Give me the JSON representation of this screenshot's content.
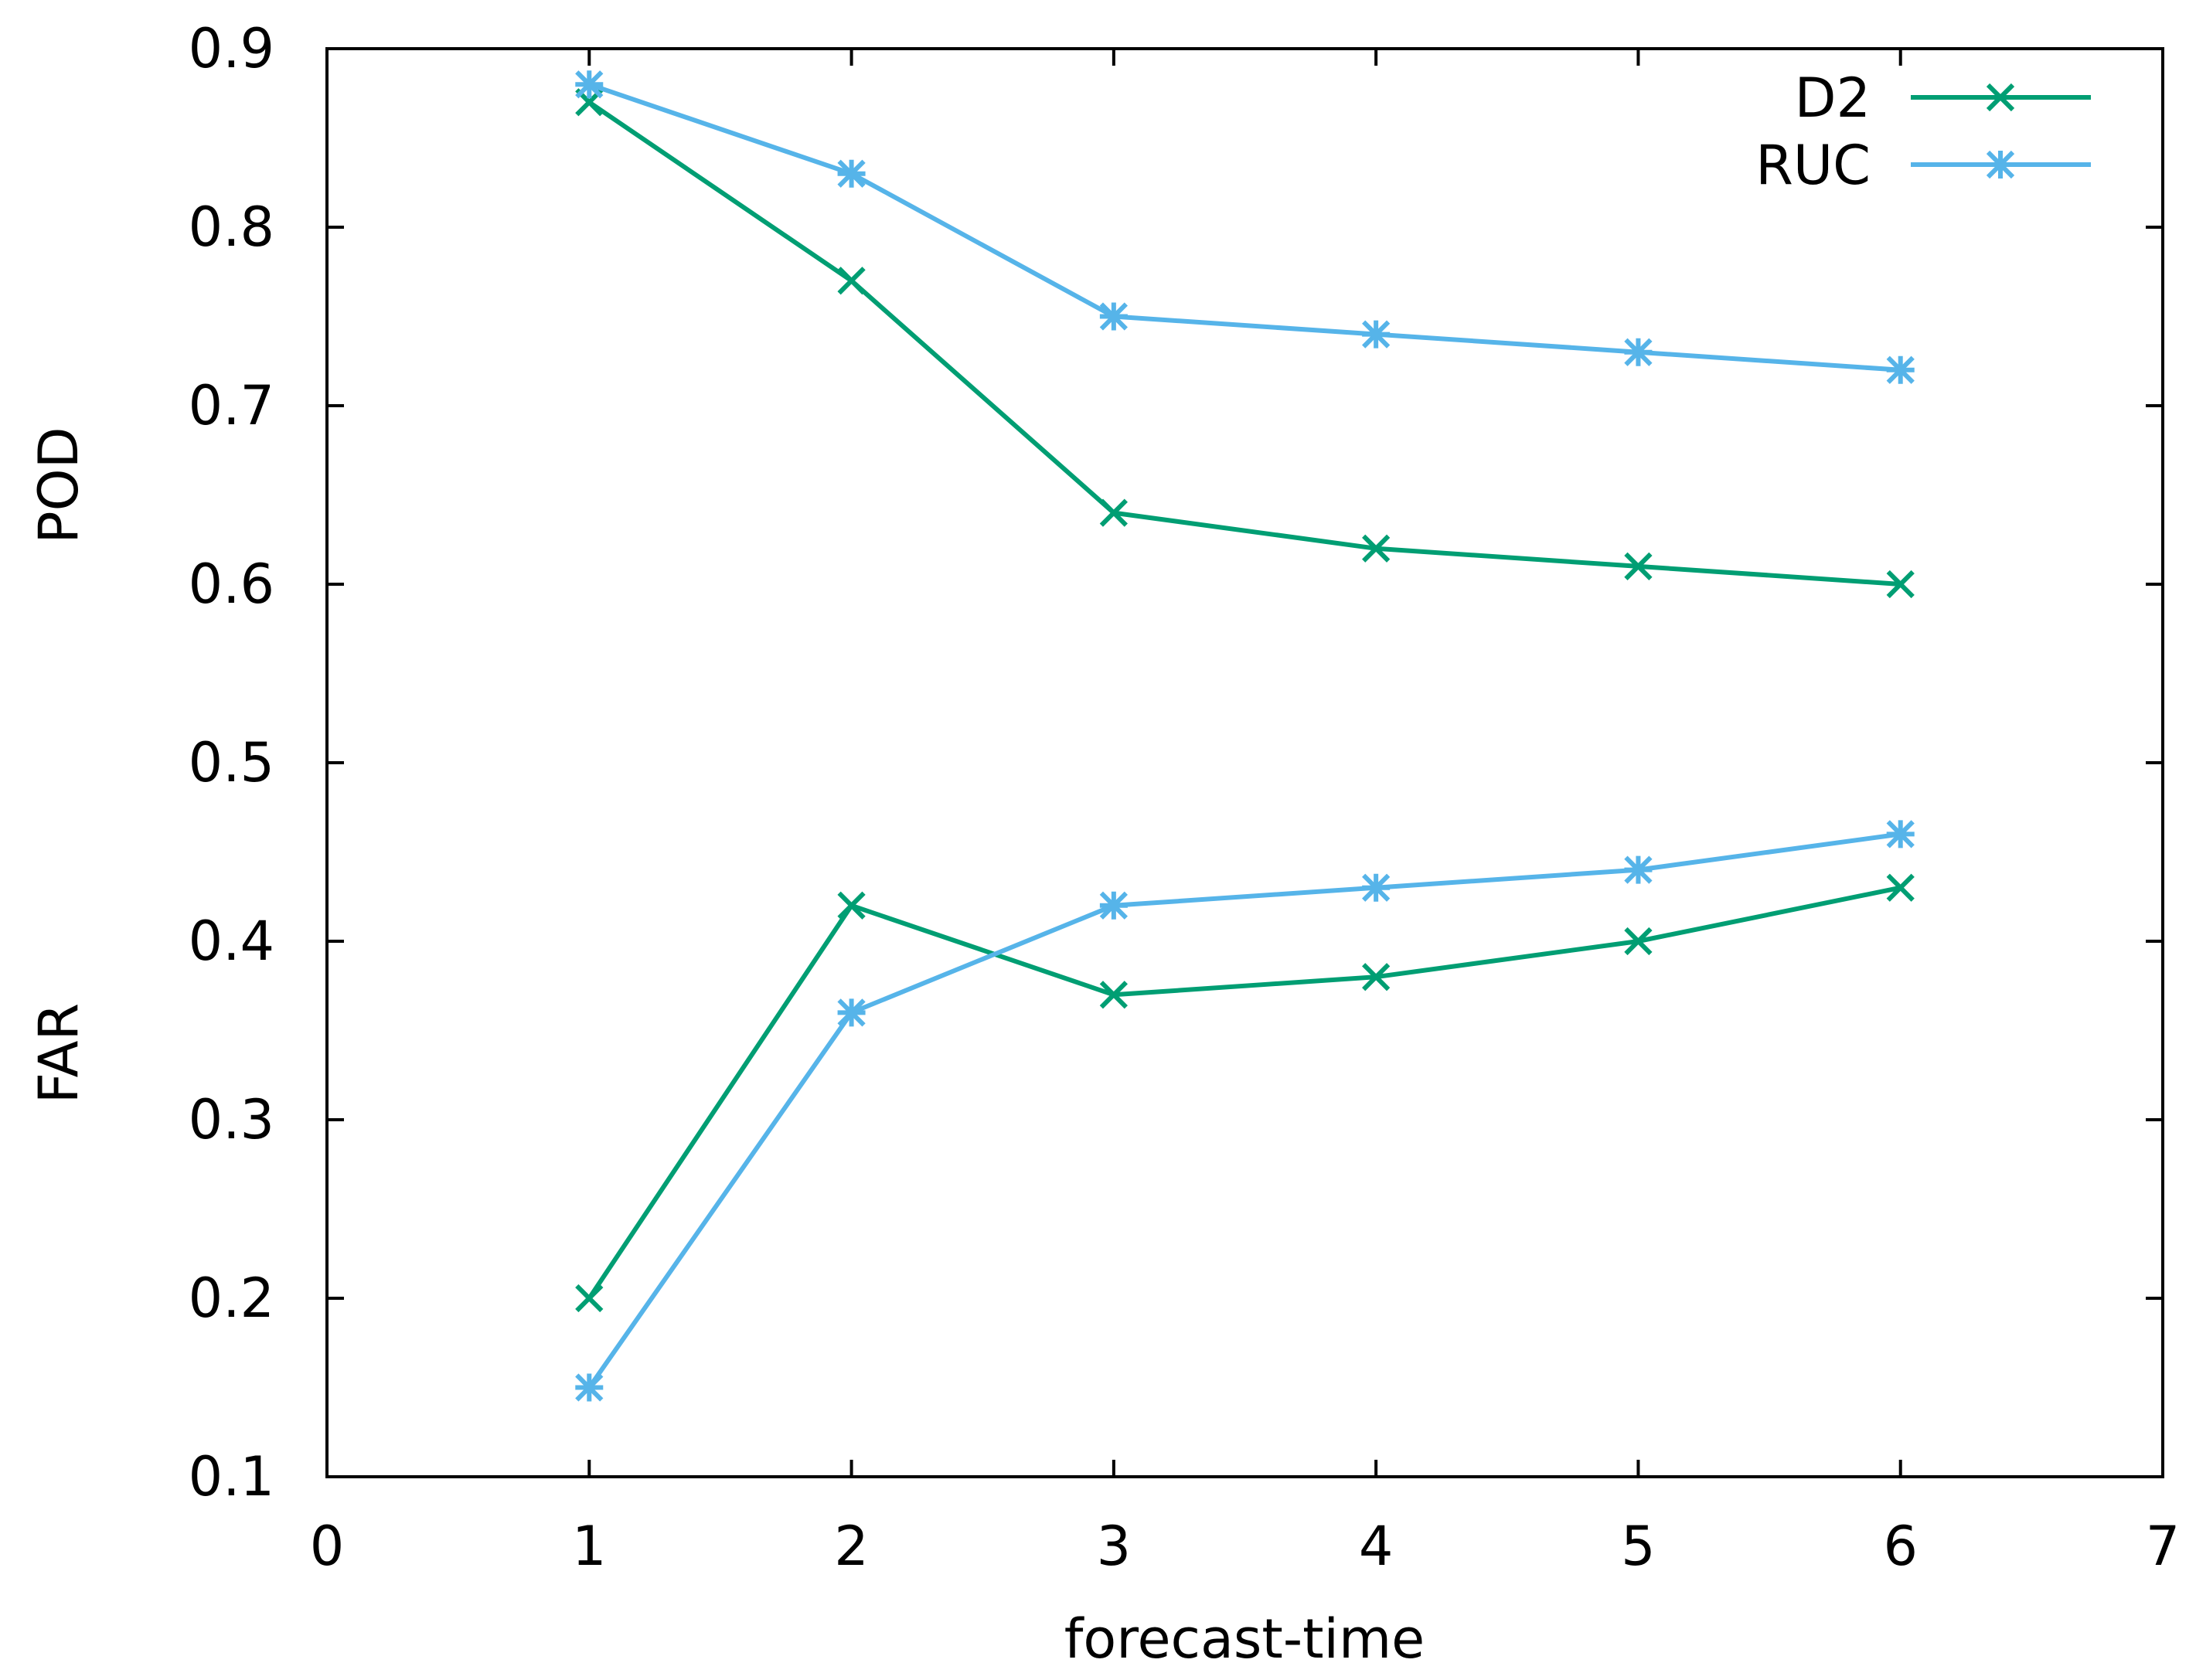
{
  "chart_data": {
    "type": "line",
    "title": "",
    "xlabel": "forecast-time",
    "ylabel_upper": "POD",
    "ylabel_lower": "FAR",
    "xlim": [
      0,
      7
    ],
    "ylim": [
      0.1,
      0.9
    ],
    "xticks": [
      "0",
      "1",
      "2",
      "3",
      "4",
      "5",
      "6",
      "7"
    ],
    "yticks": [
      "0.1",
      "0.2",
      "0.3",
      "0.4",
      "0.5",
      "0.6",
      "0.7",
      "0.8",
      "0.9"
    ],
    "x": [
      1,
      2,
      3,
      4,
      5,
      6
    ],
    "grid": false,
    "legend_position": "top-right",
    "legend": [
      {
        "name": "D2",
        "color": "#009e73",
        "marker": "x"
      },
      {
        "name": "RUC",
        "color": "#56b4e9",
        "marker": "star"
      }
    ],
    "series": [
      {
        "name": "D2",
        "metric": "POD",
        "color": "#009e73",
        "marker": "x",
        "values": [
          0.87,
          0.77,
          0.64,
          0.62,
          0.61,
          0.6
        ]
      },
      {
        "name": "RUC",
        "metric": "POD",
        "color": "#56b4e9",
        "marker": "star",
        "values": [
          0.88,
          0.83,
          0.75,
          0.74,
          0.73,
          0.72
        ]
      },
      {
        "name": "D2",
        "metric": "FAR",
        "color": "#009e73",
        "marker": "x",
        "values": [
          0.2,
          0.42,
          0.37,
          0.38,
          0.4,
          0.43
        ]
      },
      {
        "name": "RUC",
        "metric": "FAR",
        "color": "#56b4e9",
        "marker": "star",
        "values": [
          0.15,
          0.36,
          0.42,
          0.43,
          0.44,
          0.46
        ]
      }
    ]
  }
}
